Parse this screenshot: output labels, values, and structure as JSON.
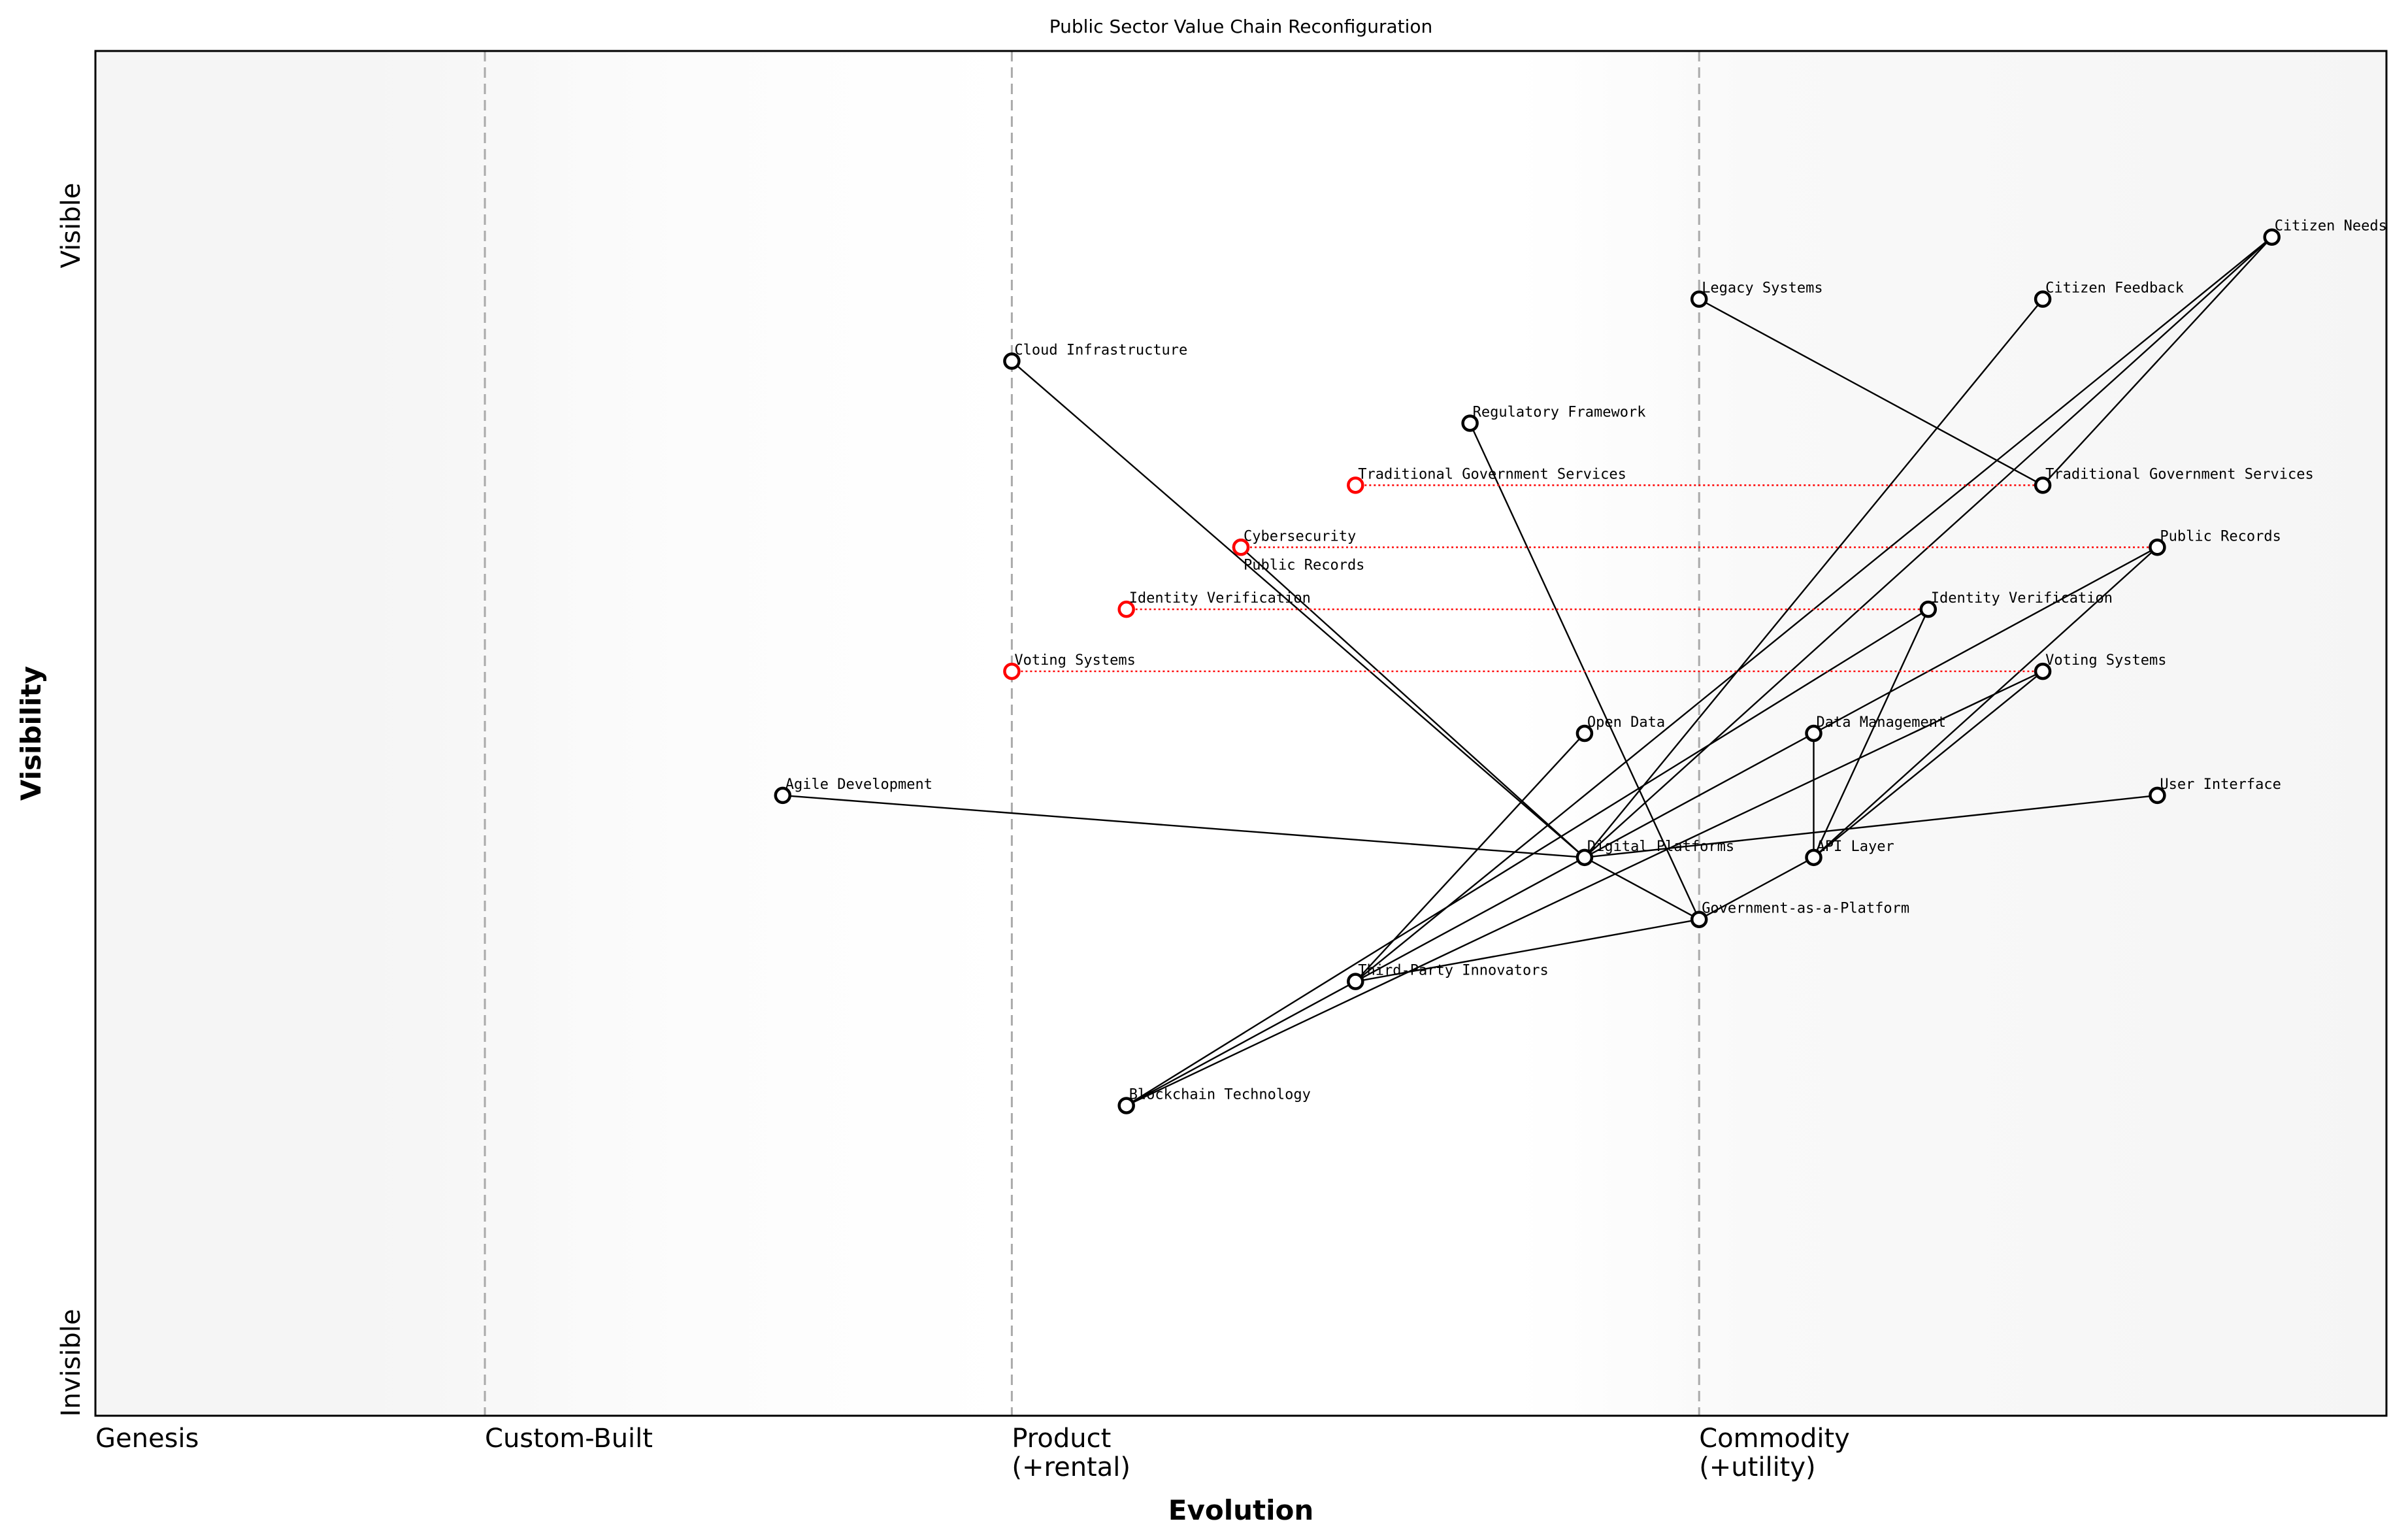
{
  "chart_data": {
    "type": "wardley-map",
    "title": "Public Sector Value Chain Reconfiguration",
    "xlabel": "Evolution",
    "ylabel": "Visibility",
    "y_top_label": "Visible",
    "y_bottom_label": "Invisible",
    "xlim": [
      0,
      1
    ],
    "ylim": [
      0,
      1.1
    ],
    "stages": [
      {
        "label": "Genesis",
        "evolution": 0
      },
      {
        "label": "Custom-Built",
        "evolution": 0.17
      },
      {
        "label": "Product\n(+rental)",
        "evolution": 0.4
      },
      {
        "label": "Commodity\n(+utility)",
        "evolution": 0.7
      }
    ],
    "colors": {
      "component": "#000000",
      "evolved_from": "#ff0000",
      "stage_line": "#aaaaaa",
      "band_shade": "#f5f5f5"
    },
    "nodes": [
      {
        "id": "cn",
        "name": "Citizen Needs",
        "evolution": 0.95,
        "visibility": 0.95,
        "kind": "component"
      },
      {
        "id": "ls",
        "name": "Legacy Systems",
        "evolution": 0.7,
        "visibility": 0.9,
        "kind": "component"
      },
      {
        "id": "cf",
        "name": "Citizen Feedback",
        "evolution": 0.85,
        "visibility": 0.9,
        "kind": "component"
      },
      {
        "id": "ci",
        "name": "Cloud Infrastructure",
        "evolution": 0.4,
        "visibility": 0.85,
        "kind": "component"
      },
      {
        "id": "rf",
        "name": "Regulatory Framework",
        "evolution": 0.6,
        "visibility": 0.8,
        "kind": "component"
      },
      {
        "id": "tgs",
        "name": "Traditional Government Services",
        "evolution": 0.85,
        "visibility": 0.75,
        "kind": "component"
      },
      {
        "id": "cs",
        "name": "Cybersecurity",
        "evolution": 0.5,
        "visibility": 0.7,
        "kind": "component"
      },
      {
        "id": "pr",
        "name": "Public Records",
        "evolution": 0.9,
        "visibility": 0.7,
        "kind": "component"
      },
      {
        "id": "iv",
        "name": "Identity Verification",
        "evolution": 0.8,
        "visibility": 0.65,
        "kind": "component"
      },
      {
        "id": "vs",
        "name": "Voting Systems",
        "evolution": 0.85,
        "visibility": 0.6,
        "kind": "component"
      },
      {
        "id": "od",
        "name": "Open Data",
        "evolution": 0.65,
        "visibility": 0.55,
        "kind": "component"
      },
      {
        "id": "dm",
        "name": "Data Management",
        "evolution": 0.75,
        "visibility": 0.55,
        "kind": "component"
      },
      {
        "id": "ad",
        "name": "Agile Development",
        "evolution": 0.3,
        "visibility": 0.5,
        "kind": "component"
      },
      {
        "id": "ui",
        "name": "User Interface",
        "evolution": 0.9,
        "visibility": 0.5,
        "kind": "component"
      },
      {
        "id": "dp",
        "name": "Digital Platforms",
        "evolution": 0.65,
        "visibility": 0.45,
        "kind": "component"
      },
      {
        "id": "api",
        "name": "API Layer",
        "evolution": 0.75,
        "visibility": 0.45,
        "kind": "component"
      },
      {
        "id": "gaap",
        "name": "Government-as-a-Platform",
        "evolution": 0.7,
        "visibility": 0.4,
        "kind": "component"
      },
      {
        "id": "tpi",
        "name": "Third-Party Innovators",
        "evolution": 0.55,
        "visibility": 0.35,
        "kind": "component"
      },
      {
        "id": "bt",
        "name": "Blockchain Technology",
        "evolution": 0.45,
        "visibility": 0.25,
        "kind": "component"
      },
      {
        "id": "tgs0",
        "name": "Traditional Government Services",
        "evolution": 0.55,
        "visibility": 0.75,
        "kind": "evolved_from"
      },
      {
        "id": "pr0",
        "name": "Public Records",
        "evolution": 0.5,
        "visibility": 0.7,
        "kind": "evolved_from"
      },
      {
        "id": "iv0",
        "name": "Identity Verification",
        "evolution": 0.45,
        "visibility": 0.65,
        "kind": "evolved_from"
      },
      {
        "id": "vs0",
        "name": "Voting Systems",
        "evolution": 0.4,
        "visibility": 0.6,
        "kind": "evolved_from"
      }
    ],
    "links": [
      [
        "cn",
        "tgs"
      ],
      [
        "cn",
        "dp"
      ],
      [
        "cn",
        "tpi"
      ],
      [
        "ls",
        "tgs"
      ],
      [
        "cf",
        "dp"
      ],
      [
        "ci",
        "dp"
      ],
      [
        "cs",
        "dp"
      ],
      [
        "rf",
        "gaap"
      ],
      [
        "pr",
        "dm"
      ],
      [
        "pr",
        "api"
      ],
      [
        "iv",
        "api"
      ],
      [
        "iv",
        "bt"
      ],
      [
        "vs",
        "api"
      ],
      [
        "vs",
        "bt"
      ],
      [
        "dm",
        "api"
      ],
      [
        "dm",
        "bt"
      ],
      [
        "od",
        "tpi"
      ],
      [
        "ad",
        "dp"
      ],
      [
        "ui",
        "dp"
      ],
      [
        "dp",
        "gaap"
      ],
      [
        "api",
        "gaap"
      ],
      [
        "gaap",
        "tpi"
      ]
    ],
    "evolutions": [
      [
        "tgs0",
        "tgs"
      ],
      [
        "pr0",
        "pr"
      ],
      [
        "iv0",
        "iv"
      ],
      [
        "vs0",
        "vs"
      ]
    ]
  }
}
